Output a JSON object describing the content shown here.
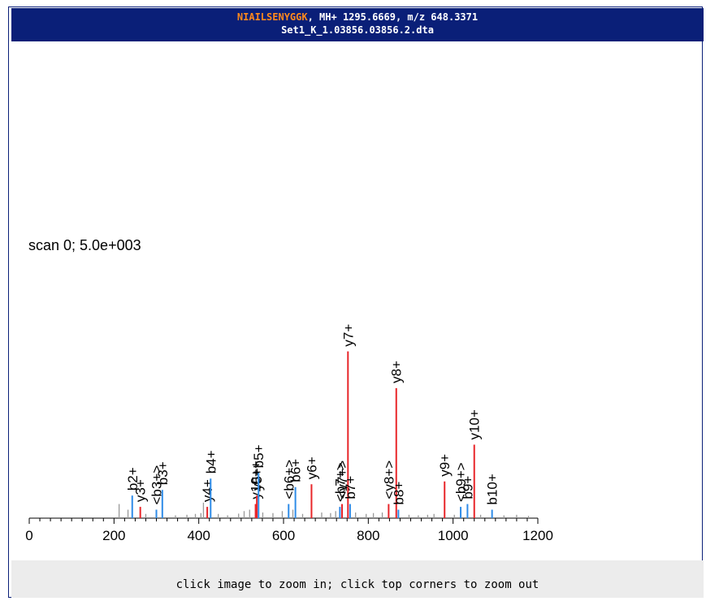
{
  "header": {
    "sequence": "NIAILSENYGGK",
    "line1_rest": ", MH+ 1295.6669, m/z 648.3371",
    "filename": "Set1_K_1.03856.03856.2.dta",
    "background_color": "#0a1f78",
    "sequence_color": "#ff8a1c"
  },
  "scan_info": "scan 0; 5.0e+003",
  "footer": {
    "instruction": "click image to zoom in; click top corners to zoom out"
  },
  "colors": {
    "y_ion": "#e8262a",
    "b_ion": "#2f8ce8",
    "unmatched": "#999999"
  },
  "chart_data": {
    "type": "bar",
    "xlim": [
      0,
      1200
    ],
    "ylim": [
      0,
      100
    ],
    "x_ticks": [
      0,
      200,
      400,
      600,
      800,
      1000,
      1200
    ],
    "peaks_labeled": [
      {
        "mz": 243,
        "intensity": 8,
        "ion": "b2+",
        "kind": "b"
      },
      {
        "mz": 262,
        "intensity": 4,
        "ion": "y3+",
        "kind": "y"
      },
      {
        "mz": 300,
        "intensity": 3,
        "ion": "<b3+>",
        "kind": "b"
      },
      {
        "mz": 314,
        "intensity": 10,
        "ion": "b3+",
        "kind": "b"
      },
      {
        "mz": 420,
        "intensity": 4,
        "ion": "y4+",
        "kind": "y"
      },
      {
        "mz": 428,
        "intensity": 14,
        "ion": "b4+",
        "kind": "b"
      },
      {
        "mz": 534,
        "intensity": 5,
        "ion": "y10++",
        "kind": "y"
      },
      {
        "mz": 537,
        "intensity": 8,
        "ion": "y5+",
        "kind": "y"
      },
      {
        "mz": 541,
        "intensity": 16,
        "ion": "b5+",
        "kind": "b"
      },
      {
        "mz": 612,
        "intensity": 5,
        "ion": "<b6+>",
        "kind": "b"
      },
      {
        "mz": 628,
        "intensity": 11,
        "ion": "b6+",
        "kind": "b"
      },
      {
        "mz": 666,
        "intensity": 12,
        "ion": "y6+",
        "kind": "y"
      },
      {
        "mz": 733,
        "intensity": 4,
        "ion": "<b7+>",
        "kind": "b"
      },
      {
        "mz": 738,
        "intensity": 5,
        "ion": "<y7+>",
        "kind": "y"
      },
      {
        "mz": 752,
        "intensity": 59,
        "ion": "y7+",
        "kind": "y"
      },
      {
        "mz": 757,
        "intensity": 5,
        "ion": "b7+",
        "kind": "b"
      },
      {
        "mz": 848,
        "intensity": 5,
        "ion": "<y8+>",
        "kind": "y"
      },
      {
        "mz": 866,
        "intensity": 46,
        "ion": "y8+",
        "kind": "y"
      },
      {
        "mz": 871,
        "intensity": 3,
        "ion": "b8+",
        "kind": "b"
      },
      {
        "mz": 980,
        "intensity": 13,
        "ion": "y9+",
        "kind": "y"
      },
      {
        "mz": 1018,
        "intensity": 4,
        "ion": "<b9+>",
        "kind": "b"
      },
      {
        "mz": 1034,
        "intensity": 5,
        "ion": "b9+",
        "kind": "b"
      },
      {
        "mz": 1050,
        "intensity": 26,
        "ion": "y10+",
        "kind": "y"
      },
      {
        "mz": 1092,
        "intensity": 3,
        "ion": "b10+",
        "kind": "b"
      }
    ],
    "peaks_unmatched": [
      {
        "mz": 212,
        "intensity": 5
      },
      {
        "mz": 233,
        "intensity": 3
      },
      {
        "mz": 275,
        "intensity": 1.5
      },
      {
        "mz": 345,
        "intensity": 1
      },
      {
        "mz": 372,
        "intensity": 1.2
      },
      {
        "mz": 392,
        "intensity": 1.5
      },
      {
        "mz": 405,
        "intensity": 1.8
      },
      {
        "mz": 411,
        "intensity": 5.5
      },
      {
        "mz": 446,
        "intensity": 1.5
      },
      {
        "mz": 468,
        "intensity": 1
      },
      {
        "mz": 494,
        "intensity": 1.6
      },
      {
        "mz": 507,
        "intensity": 2.5
      },
      {
        "mz": 520,
        "intensity": 3
      },
      {
        "mz": 551,
        "intensity": 2
      },
      {
        "mz": 575,
        "intensity": 1.8
      },
      {
        "mz": 597,
        "intensity": 2.5
      },
      {
        "mz": 622,
        "intensity": 3
      },
      {
        "mz": 645,
        "intensity": 1.5
      },
      {
        "mz": 690,
        "intensity": 2
      },
      {
        "mz": 711,
        "intensity": 1.8
      },
      {
        "mz": 723,
        "intensity": 2.5
      },
      {
        "mz": 770,
        "intensity": 2
      },
      {
        "mz": 795,
        "intensity": 1.5
      },
      {
        "mz": 812,
        "intensity": 1.8
      },
      {
        "mz": 833,
        "intensity": 2
      },
      {
        "mz": 896,
        "intensity": 1.2
      },
      {
        "mz": 918,
        "intensity": 1
      },
      {
        "mz": 940,
        "intensity": 1.2
      },
      {
        "mz": 955,
        "intensity": 1.5
      },
      {
        "mz": 1003,
        "intensity": 1.2
      },
      {
        "mz": 1065,
        "intensity": 1.2
      },
      {
        "mz": 1120,
        "intensity": 1
      },
      {
        "mz": 1150,
        "intensity": 1.2
      },
      {
        "mz": 1178,
        "intensity": 0.8
      }
    ]
  }
}
